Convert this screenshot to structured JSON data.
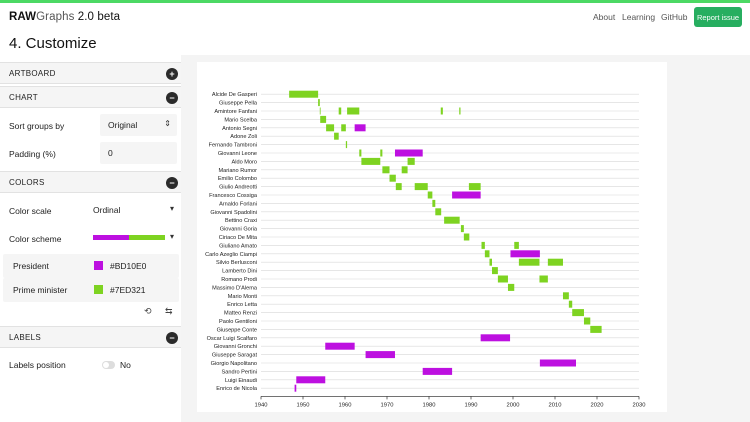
{
  "brand": {
    "raw": "RAW",
    "graphs": "Graphs",
    "version": " 2.0 beta"
  },
  "nav": {
    "about": "About",
    "learning": "Learning",
    "github": "GitHub",
    "report": "Report issue"
  },
  "page_title": "4. Customize",
  "sections": {
    "artboard": "ARTBOARD",
    "chart": "CHART",
    "colors": "COLORS",
    "labels": "LABELS"
  },
  "chart_options": {
    "sort_label": "Sort groups by",
    "sort_value": "Original",
    "padding_label": "Padding (%)",
    "padding_value": "0"
  },
  "colors": {
    "scale_label": "Color scale",
    "scale_value": "Ordinal",
    "scheme_label": "Color scheme",
    "mappings": [
      {
        "name": "President",
        "hex": "#BD10E0"
      },
      {
        "name": "Prime minister",
        "hex": "#7ED321"
      }
    ]
  },
  "labels": {
    "position_label": "Labels position",
    "position_value": "No"
  },
  "icons": {
    "expand": "plus-icon",
    "collapse": "minus-icon",
    "reset": "reset-icon",
    "swap": "swap-icon"
  },
  "chart_data": {
    "type": "gantt",
    "xlim": [
      1940,
      2030
    ],
    "x_ticks": [
      1940,
      1950,
      1960,
      1970,
      1980,
      1990,
      2000,
      2010,
      2020,
      2030
    ],
    "colors": {
      "President": "#BD10E0",
      "Prime minister": "#7ED321"
    },
    "rows": [
      {
        "name": "Alcide De Gasperi",
        "bars": [
          {
            "start": 1946.7,
            "end": 1953.6,
            "role": "Prime minister"
          }
        ]
      },
      {
        "name": "Giuseppe Pella",
        "bars": [
          {
            "start": 1953.6,
            "end": 1954.0,
            "role": "Prime minister"
          }
        ]
      },
      {
        "name": "Amintore Fanfani",
        "bars": [
          {
            "start": 1954.0,
            "end": 1954.1,
            "role": "Prime minister"
          },
          {
            "start": 1958.5,
            "end": 1959.1,
            "role": "Prime minister"
          },
          {
            "start": 1960.5,
            "end": 1963.4,
            "role": "Prime minister"
          },
          {
            "start": 1982.8,
            "end": 1983.3,
            "role": "Prime minister"
          },
          {
            "start": 1987.2,
            "end": 1987.5,
            "role": "Prime minister"
          }
        ]
      },
      {
        "name": "Mario Scelba",
        "bars": [
          {
            "start": 1954.1,
            "end": 1955.5,
            "role": "Prime minister"
          }
        ]
      },
      {
        "name": "Antonio Segni",
        "bars": [
          {
            "start": 1955.5,
            "end": 1957.4,
            "role": "Prime minister"
          },
          {
            "start": 1959.1,
            "end": 1960.2,
            "role": "Prime minister"
          },
          {
            "start": 1962.3,
            "end": 1964.9,
            "role": "President"
          }
        ]
      },
      {
        "name": "Adone Zoli",
        "bars": [
          {
            "start": 1957.4,
            "end": 1958.5,
            "role": "Prime minister"
          }
        ]
      },
      {
        "name": "Fernando Tambroni",
        "bars": [
          {
            "start": 1960.2,
            "end": 1960.5,
            "role": "Prime minister"
          }
        ]
      },
      {
        "name": "Giovanni Leone",
        "bars": [
          {
            "start": 1963.4,
            "end": 1963.9,
            "role": "Prime minister"
          },
          {
            "start": 1968.4,
            "end": 1968.9,
            "role": "Prime minister"
          },
          {
            "start": 1971.9,
            "end": 1978.5,
            "role": "President"
          }
        ]
      },
      {
        "name": "Aldo Moro",
        "bars": [
          {
            "start": 1963.9,
            "end": 1968.4,
            "role": "Prime minister"
          },
          {
            "start": 1974.9,
            "end": 1976.6,
            "role": "Prime minister"
          }
        ]
      },
      {
        "name": "Mariano Rumor",
        "bars": [
          {
            "start": 1968.9,
            "end": 1970.6,
            "role": "Prime minister"
          },
          {
            "start": 1973.5,
            "end": 1974.9,
            "role": "Prime minister"
          }
        ]
      },
      {
        "name": "Emilio Colombo",
        "bars": [
          {
            "start": 1970.6,
            "end": 1972.1,
            "role": "Prime minister"
          }
        ]
      },
      {
        "name": "Giulio Andreotti",
        "bars": [
          {
            "start": 1972.1,
            "end": 1973.5,
            "role": "Prime minister"
          },
          {
            "start": 1976.6,
            "end": 1979.7,
            "role": "Prime minister"
          },
          {
            "start": 1989.5,
            "end": 1992.3,
            "role": "Prime minister"
          }
        ]
      },
      {
        "name": "Francesco Cossiga",
        "bars": [
          {
            "start": 1979.7,
            "end": 1980.8,
            "role": "Prime minister"
          },
          {
            "start": 1985.5,
            "end": 1992.3,
            "role": "President"
          }
        ]
      },
      {
        "name": "Arnaldo Forlani",
        "bars": [
          {
            "start": 1980.8,
            "end": 1981.5,
            "role": "Prime minister"
          }
        ]
      },
      {
        "name": "Giovanni Spadolini",
        "bars": [
          {
            "start": 1981.5,
            "end": 1982.9,
            "role": "Prime minister"
          }
        ]
      },
      {
        "name": "Bettino Craxi",
        "bars": [
          {
            "start": 1983.6,
            "end": 1987.3,
            "role": "Prime minister"
          }
        ]
      },
      {
        "name": "Giovanni Goria",
        "bars": [
          {
            "start": 1987.6,
            "end": 1988.3,
            "role": "Prime minister"
          }
        ]
      },
      {
        "name": "Ciriaco De Mita",
        "bars": [
          {
            "start": 1988.3,
            "end": 1989.6,
            "role": "Prime minister"
          }
        ]
      },
      {
        "name": "Giuliano Amato",
        "bars": [
          {
            "start": 1992.5,
            "end": 1993.3,
            "role": "Prime minister"
          },
          {
            "start": 2000.3,
            "end": 2001.4,
            "role": "Prime minister"
          }
        ]
      },
      {
        "name": "Carlo Azeglio Ciampi",
        "bars": [
          {
            "start": 1993.3,
            "end": 1994.4,
            "role": "Prime minister"
          },
          {
            "start": 1999.4,
            "end": 2006.4,
            "role": "President"
          }
        ]
      },
      {
        "name": "Silvio Berlusconi",
        "bars": [
          {
            "start": 1994.4,
            "end": 1995.0,
            "role": "Prime minister"
          },
          {
            "start": 2001.4,
            "end": 2006.3,
            "role": "Prime minister"
          },
          {
            "start": 2008.3,
            "end": 2011.9,
            "role": "Prime minister"
          }
        ]
      },
      {
        "name": "Lamberto Dini",
        "bars": [
          {
            "start": 1995.0,
            "end": 1996.4,
            "role": "Prime minister"
          }
        ]
      },
      {
        "name": "Romano Prodi",
        "bars": [
          {
            "start": 1996.4,
            "end": 1998.8,
            "role": "Prime minister"
          },
          {
            "start": 2006.3,
            "end": 2008.3,
            "role": "Prime minister"
          }
        ]
      },
      {
        "name": "Massimo D'Alema",
        "bars": [
          {
            "start": 1998.8,
            "end": 2000.3,
            "role": "Prime minister"
          }
        ]
      },
      {
        "name": "Mario Monti",
        "bars": [
          {
            "start": 2011.9,
            "end": 2013.3,
            "role": "Prime minister"
          }
        ]
      },
      {
        "name": "Enrico Letta",
        "bars": [
          {
            "start": 2013.3,
            "end": 2014.1,
            "role": "Prime minister"
          }
        ]
      },
      {
        "name": "Matteo Renzi",
        "bars": [
          {
            "start": 2014.1,
            "end": 2016.9,
            "role": "Prime minister"
          }
        ]
      },
      {
        "name": "Paolo Gentiloni",
        "bars": [
          {
            "start": 2016.9,
            "end": 2018.4,
            "role": "Prime minister"
          }
        ]
      },
      {
        "name": "Giuseppe Conte",
        "bars": [
          {
            "start": 2018.4,
            "end": 2021.1,
            "role": "Prime minister"
          }
        ]
      },
      {
        "name": "Oscar Luigi Scalfaro",
        "bars": [
          {
            "start": 1992.3,
            "end": 1999.3,
            "role": "President"
          }
        ]
      },
      {
        "name": "Giovanni Gronchi",
        "bars": [
          {
            "start": 1955.3,
            "end": 1962.3,
            "role": "President"
          }
        ]
      },
      {
        "name": "Giuseppe Saragat",
        "bars": [
          {
            "start": 1964.9,
            "end": 1971.9,
            "role": "President"
          }
        ]
      },
      {
        "name": "Giorgio Napolitano",
        "bars": [
          {
            "start": 2006.4,
            "end": 2015.0,
            "role": "President"
          }
        ]
      },
      {
        "name": "Sandro Pertini",
        "bars": [
          {
            "start": 1978.5,
            "end": 1985.5,
            "role": "President"
          }
        ]
      },
      {
        "name": "Luigi Einaudi",
        "bars": [
          {
            "start": 1948.4,
            "end": 1955.3,
            "role": "President"
          }
        ]
      },
      {
        "name": "Enrico de Nicola",
        "bars": [
          {
            "start": 1948.0,
            "end": 1948.4,
            "role": "President"
          }
        ]
      }
    ]
  }
}
